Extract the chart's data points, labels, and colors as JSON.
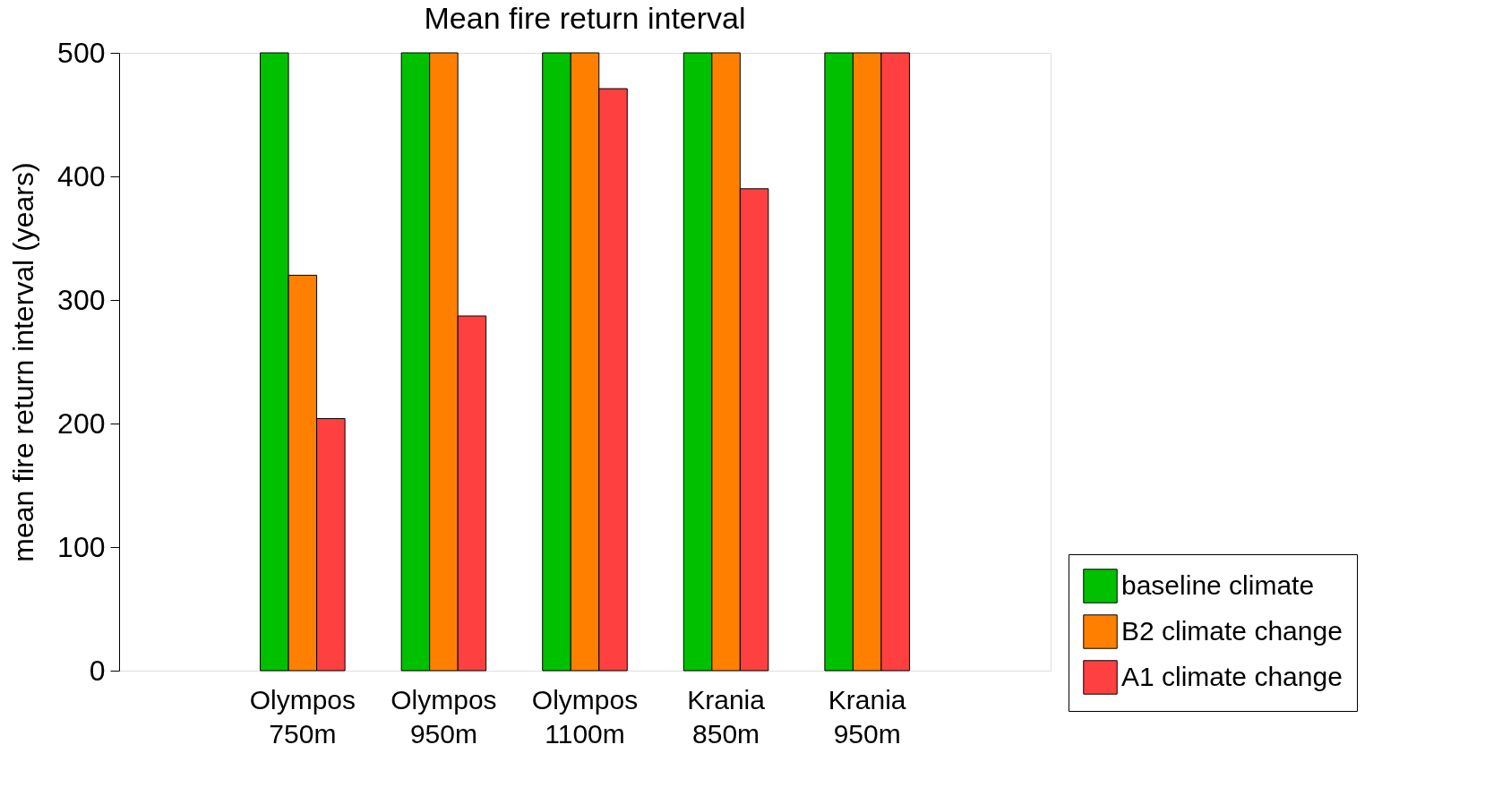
{
  "chart_data": {
    "type": "bar",
    "title": "Mean fire return interval",
    "ylabel": "mean fire return interval (years)",
    "categories": [
      "Olympos 750m",
      "Olympos 950m",
      "Olympos 1100m",
      "Krania 850m",
      "Krania 950m"
    ],
    "series": [
      {
        "name": "baseline climate",
        "color": "#00c000",
        "values": [
          500,
          500,
          500,
          500,
          500
        ]
      },
      {
        "name": "B2 climate change",
        "color": "#ff8000",
        "values": [
          320,
          500,
          500,
          500,
          500
        ]
      },
      {
        "name": "A1 climate change",
        "color": "#ff4040",
        "values": [
          204,
          287,
          471,
          390,
          500
        ]
      }
    ],
    "ylim": [
      0,
      500
    ],
    "yticks": [
      0,
      100,
      200,
      300,
      400,
      500
    ],
    "grid": false,
    "legend": "bottom right"
  }
}
